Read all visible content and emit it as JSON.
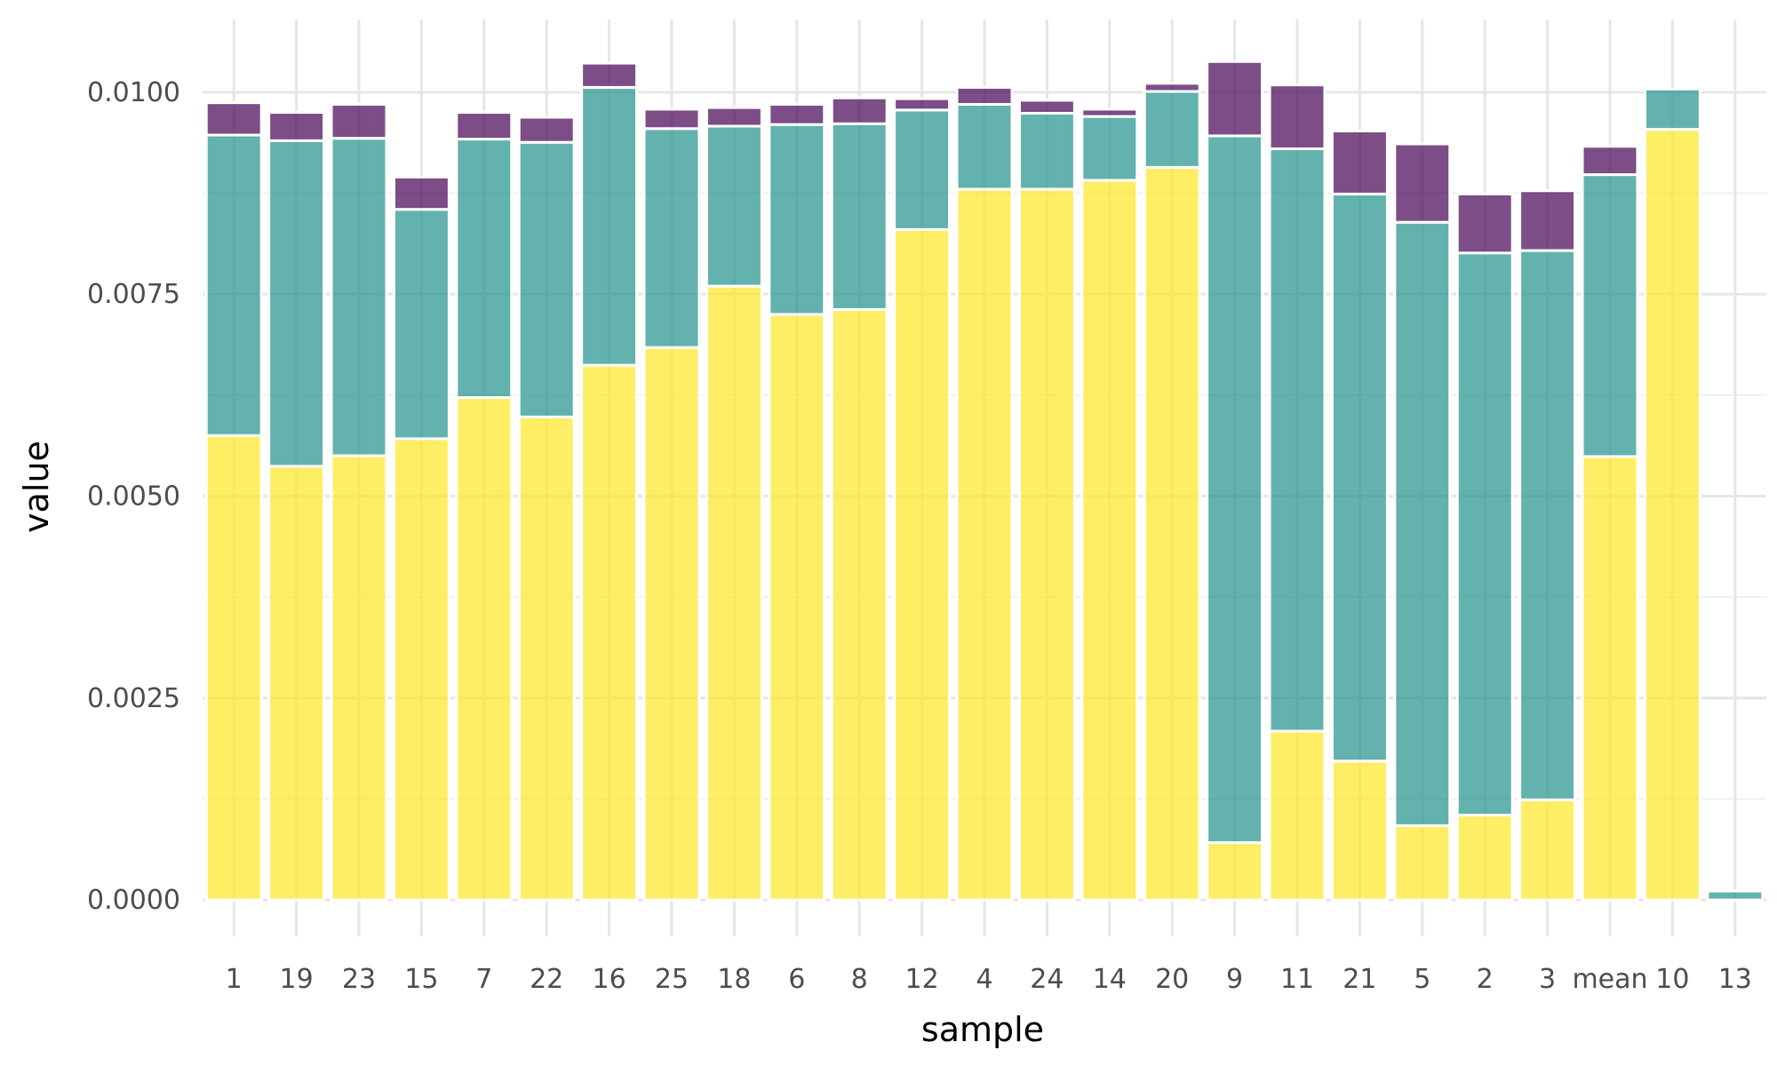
{
  "chart_data": {
    "type": "bar",
    "stacked": true,
    "title": "",
    "xlabel": "sample",
    "ylabel": "value",
    "ylim": [
      -0.00045,
      0.0109
    ],
    "yticks": [
      0,
      0.0025,
      0.005,
      0.0075,
      0.01
    ],
    "ytick_labels": [
      "0.0000",
      "0.0025",
      "0.0050",
      "0.0075",
      "0.0100"
    ],
    "grid": true,
    "legend": "none",
    "categories": [
      "1",
      "19",
      "23",
      "15",
      "7",
      "22",
      "16",
      "25",
      "18",
      "6",
      "8",
      "12",
      "4",
      "24",
      "14",
      "20",
      "9",
      "11",
      "21",
      "5",
      "2",
      "3",
      "mean",
      "10",
      "13"
    ],
    "series": [
      {
        "name": "yellow",
        "color": "#FDE725",
        "values": [
          0.00575,
          0.00537,
          0.0055,
          0.00571,
          0.00622,
          0.00598,
          0.00662,
          0.00684,
          0.0076,
          0.00725,
          0.00731,
          0.0083,
          0.0088,
          0.0088,
          0.00891,
          0.00907,
          0.00071,
          0.00209,
          0.00172,
          0.00092,
          0.00105,
          0.00124,
          0.00549,
          0.00954,
          0.0
        ]
      },
      {
        "name": "teal",
        "color": "#21918C",
        "values": [
          0.00372,
          0.00403,
          0.00393,
          0.00284,
          0.0032,
          0.0034,
          0.00344,
          0.00271,
          0.00198,
          0.00235,
          0.0023,
          0.00148,
          0.00105,
          0.00094,
          0.00079,
          0.00094,
          0.00875,
          0.00721,
          0.00702,
          0.00747,
          0.00696,
          0.0068,
          0.00349,
          0.0005,
          0.00011
        ]
      },
      {
        "name": "purple",
        "color": "#440154",
        "values": [
          0.0004,
          0.00035,
          0.00042,
          0.0004,
          0.00033,
          0.00031,
          0.0003,
          0.00024,
          0.00023,
          0.00025,
          0.00032,
          0.00014,
          0.00021,
          0.00016,
          9e-05,
          0.0001,
          0.00092,
          0.00079,
          0.00078,
          0.00097,
          0.00073,
          0.00074,
          0.00035,
          0.0,
          0.0
        ]
      }
    ]
  }
}
